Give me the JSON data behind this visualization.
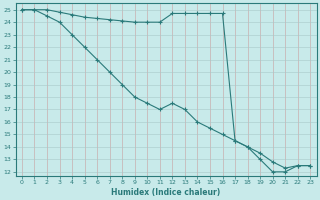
{
  "xlabel": "Humidex (Indice chaleur)",
  "ylabel": "",
  "bg_color": "#c8eaea",
  "line_color": "#2a7a7a",
  "grid_color": "#b0d0d0",
  "grid_color_minor": "#e8f4f4",
  "axis_color": "#2a7a7a",
  "tick_color": "#2a7a7a",
  "xlim": [
    -0.5,
    23.5
  ],
  "ylim": [
    11.7,
    25.5
  ],
  "xticks": [
    0,
    1,
    2,
    3,
    4,
    5,
    6,
    7,
    8,
    9,
    10,
    11,
    12,
    13,
    14,
    15,
    16,
    17,
    18,
    19,
    20,
    21,
    22,
    23
  ],
  "yticks": [
    12,
    13,
    14,
    15,
    16,
    17,
    18,
    19,
    20,
    21,
    22,
    23,
    24,
    25
  ],
  "line1_x": [
    0,
    1,
    2,
    3,
    4,
    5,
    6,
    7,
    8,
    9,
    10,
    11,
    12,
    13,
    14,
    15,
    16,
    17,
    18,
    19,
    20,
    21,
    22,
    23
  ],
  "line1_y": [
    25,
    25,
    25,
    24.8,
    24.6,
    24.4,
    24.3,
    24.2,
    24.1,
    24.0,
    24.0,
    24.0,
    24.7,
    24.7,
    24.7,
    24.7,
    24.7,
    14.5,
    14.0,
    13.0,
    12.0,
    12.0,
    12.5,
    12.5
  ],
  "line2_x": [
    0,
    1,
    2,
    3,
    4,
    5,
    6,
    7,
    8,
    9,
    10,
    11,
    12,
    13,
    14,
    15,
    16,
    17,
    18,
    19,
    20,
    21,
    22,
    23
  ],
  "line2_y": [
    25,
    25,
    24.5,
    24.0,
    23.0,
    22.0,
    21.0,
    20.0,
    19.0,
    18.0,
    17.5,
    17.0,
    17.5,
    17.0,
    16.0,
    15.5,
    15.0,
    14.5,
    14.0,
    13.5,
    12.8,
    12.3,
    12.5,
    12.5
  ]
}
